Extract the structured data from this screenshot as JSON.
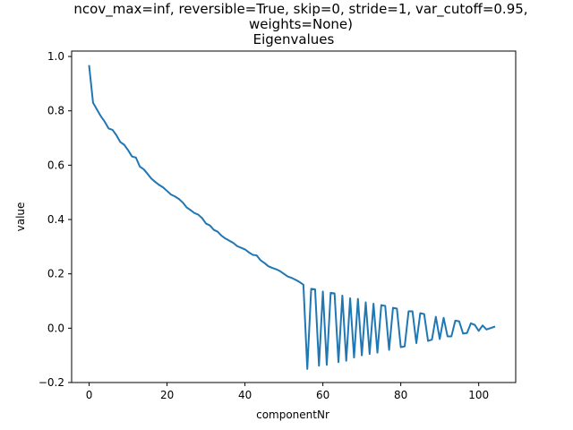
{
  "chart_data": {
    "type": "line",
    "title_lines": [
      "ncov_max=inf, reversible=True, skip=0, stride=1, var_cutoff=0.95,",
      "weights=None)",
      "Eigenvalues"
    ],
    "xlabel": "componentNr",
    "ylabel": "value",
    "xlim": [
      -4.5,
      109.5
    ],
    "ylim": [
      -0.2,
      1.02
    ],
    "x_ticks": [
      0,
      20,
      40,
      60,
      80,
      100
    ],
    "y_ticks": [
      -0.2,
      0.0,
      0.2,
      0.4,
      0.6,
      0.8,
      1.0
    ],
    "x_tick_labels": [
      "0",
      "20",
      "40",
      "60",
      "80",
      "100"
    ],
    "y_tick_labels": [
      "−0.2",
      "0.0",
      "0.2",
      "0.4",
      "0.6",
      "0.8",
      "1.0"
    ],
    "grid": false,
    "line_color": "#1f77b4",
    "series": [
      {
        "x": [
          0,
          1,
          2,
          3,
          4,
          5,
          6,
          7,
          8,
          9,
          10,
          11,
          12,
          13,
          14,
          15,
          16,
          17,
          18,
          19,
          20,
          21,
          22,
          23,
          24,
          25,
          26,
          27,
          28,
          29,
          30,
          31,
          32,
          33,
          34,
          35,
          36,
          37,
          38,
          39,
          40,
          41,
          42,
          43,
          44,
          45,
          46,
          47,
          48,
          49,
          50,
          51,
          52,
          53,
          54,
          55,
          56,
          57,
          58,
          59,
          60,
          61,
          62,
          63,
          64,
          65,
          66,
          67,
          68,
          69,
          70,
          71,
          72,
          73,
          74,
          75,
          76,
          77,
          78,
          79,
          80,
          81,
          82,
          83,
          84,
          85,
          86,
          87,
          88,
          89,
          90,
          91,
          92,
          93,
          94,
          95,
          96,
          97,
          98,
          99,
          100,
          101,
          102,
          103,
          104
        ],
        "values": [
          0.965,
          0.83,
          0.805,
          0.78,
          0.76,
          0.735,
          0.73,
          0.71,
          0.685,
          0.675,
          0.655,
          0.632,
          0.628,
          0.595,
          0.585,
          0.568,
          0.55,
          0.538,
          0.527,
          0.518,
          0.505,
          0.492,
          0.485,
          0.476,
          0.463,
          0.445,
          0.435,
          0.424,
          0.418,
          0.405,
          0.385,
          0.378,
          0.362,
          0.355,
          0.34,
          0.33,
          0.322,
          0.314,
          0.302,
          0.296,
          0.29,
          0.279,
          0.27,
          0.268,
          0.25,
          0.24,
          0.228,
          0.222,
          0.217,
          0.21,
          0.2,
          0.19,
          0.185,
          0.178,
          0.17,
          0.16,
          -0.15,
          0.145,
          0.143,
          -0.138,
          0.135,
          -0.135,
          0.13,
          0.128,
          -0.125,
          0.12,
          -0.12,
          0.11,
          -0.108,
          0.108,
          -0.1,
          0.095,
          -0.095,
          0.09,
          -0.09,
          0.085,
          0.082,
          -0.08,
          0.075,
          0.072,
          -0.07,
          -0.067,
          0.062,
          0.062,
          -0.055,
          0.055,
          0.052,
          -0.047,
          -0.042,
          0.042,
          -0.04,
          0.038,
          -0.03,
          -0.03,
          0.028,
          0.025,
          -0.02,
          -0.018,
          0.018,
          0.012,
          -0.01,
          0.01,
          -0.005,
          0.0,
          0.005
        ]
      }
    ]
  }
}
